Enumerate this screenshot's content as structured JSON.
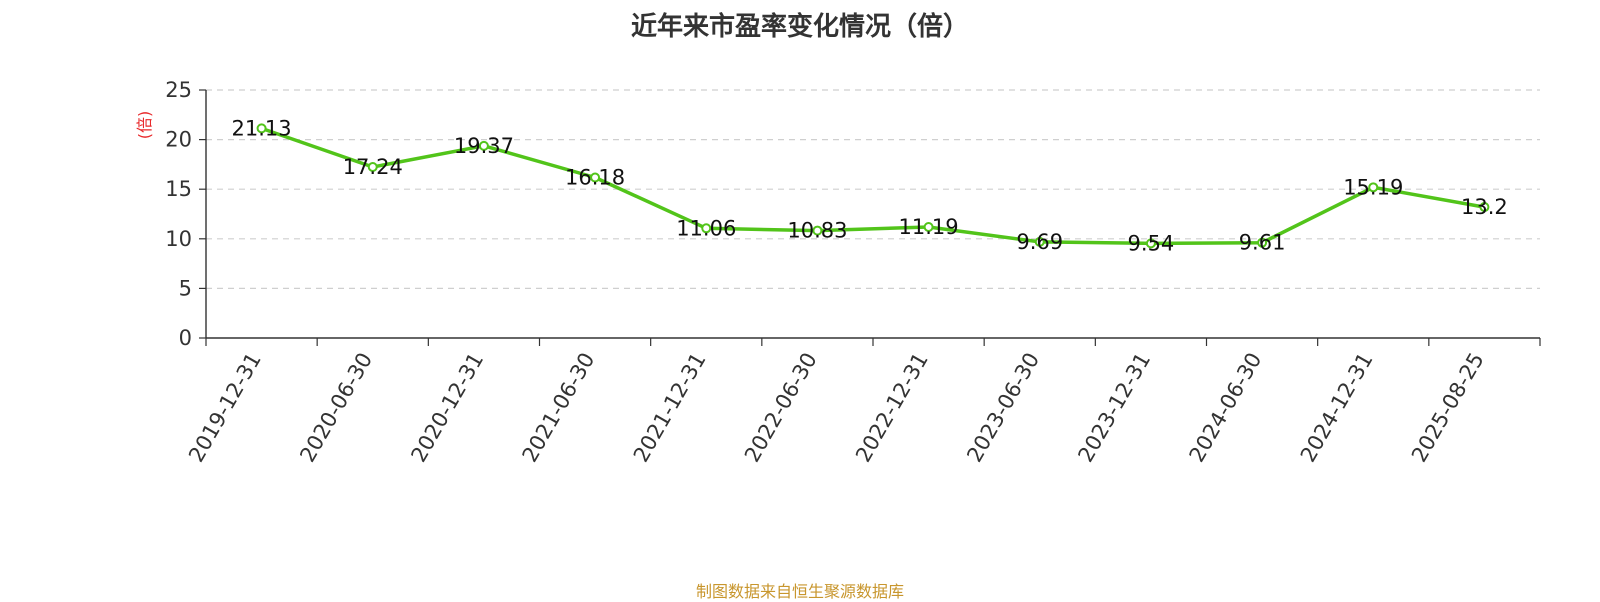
{
  "title": "近年来市盈率变化情况（倍）",
  "source_note": "制图数据来自恒生聚源数据库",
  "chart_data": {
    "type": "line",
    "title": "近年来市盈率变化情况（倍）",
    "ylabel": "(倍)",
    "xlabel": "",
    "categories": [
      "2019-12-31",
      "2020-06-30",
      "2020-12-31",
      "2021-06-30",
      "2021-12-31",
      "2022-06-30",
      "2022-12-31",
      "2023-06-30",
      "2023-12-31",
      "2024-06-30",
      "2024-12-31",
      "2025-08-25"
    ],
    "series": [
      {
        "values": [
          21.13,
          17.24,
          19.37,
          16.18,
          11.06,
          10.83,
          11.19,
          9.69,
          9.54,
          9.61,
          15.19,
          13.2
        ],
        "labels": [
          "21.13",
          "17.24",
          "19.37",
          "16.18",
          "11.06",
          "10.83",
          "11.19",
          "9.69",
          "9.54",
          "9.61",
          "15.19",
          "13.2"
        ],
        "color": "#52c41a"
      }
    ],
    "ylim": [
      0,
      25
    ],
    "yticks": [
      "0",
      "5",
      "10",
      "15",
      "20",
      "25"
    ],
    "grid": true,
    "legend": "none"
  }
}
